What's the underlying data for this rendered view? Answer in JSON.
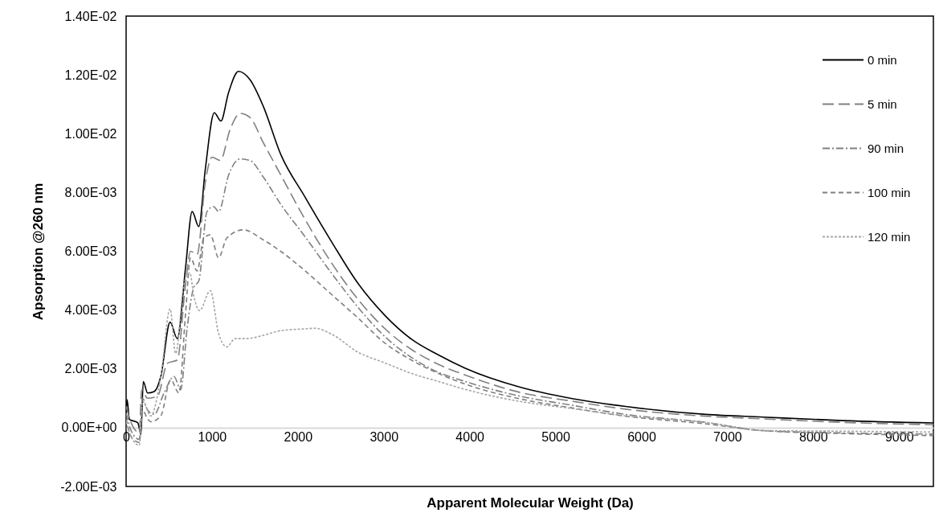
{
  "chart_data": {
    "type": "line",
    "xlabel": "Apparent Molecular Weight (Da)",
    "ylabel": "Apsorption @260 nm",
    "xlim": [
      0,
      9400
    ],
    "xticks": [
      0,
      1000,
      2000,
      3000,
      4000,
      5000,
      6000,
      7000,
      8000,
      9000
    ],
    "ylim": [
      -0.002,
      0.014
    ],
    "yticks": [
      {
        "value": -0.002,
        "label": "-2.00E-03"
      },
      {
        "value": 0,
        "label": "0.00E+00"
      },
      {
        "value": 0.002,
        "label": "2.00E-03"
      },
      {
        "value": 0.004,
        "label": "4.00E-03"
      },
      {
        "value": 0.006,
        "label": "6.00E-03"
      },
      {
        "value": 0.008,
        "label": "8.00E-03"
      },
      {
        "value": 0.01,
        "label": "1.00E-02"
      },
      {
        "value": 0.012,
        "label": "1.20E-02"
      },
      {
        "value": 0.014,
        "label": "1.40E-02"
      }
    ],
    "legend": "top right",
    "marker": "none",
    "series": [
      {
        "name": "0 min",
        "color": "#000000",
        "line_style": "solid",
        "x": [
          0,
          12,
          38,
          135,
          173,
          200,
          250,
          327,
          404,
          512,
          596,
          692,
          769,
          846,
          923,
          1027,
          1104,
          1192,
          1308,
          1442,
          1596,
          1800,
          2082,
          2393,
          2704,
          3016,
          3327,
          3638,
          3949,
          4571,
          5194,
          5816,
          6749,
          7411,
          8346,
          9400
        ],
        "values": [
          0.0005,
          0.00095,
          0.00028,
          0.00017,
          -0.00022,
          0.00157,
          0.00118,
          0.00123,
          0.00174,
          0.00359,
          0.00303,
          0.00544,
          0.00735,
          0.00684,
          0.00881,
          0.01071,
          0.01043,
          0.01139,
          0.01212,
          0.01184,
          0.01094,
          0.0093,
          0.00785,
          0.00632,
          0.00489,
          0.00381,
          0.003,
          0.00247,
          0.00202,
          0.00139,
          0.00099,
          0.00072,
          0.00045,
          0.00036,
          0.00024,
          0.00016
        ]
      },
      {
        "name": "5 min",
        "color": "#808080",
        "line_style": "longdash",
        "x": [
          0,
          58,
          154,
          181,
          250,
          365,
          481,
          596,
          692,
          750,
          827,
          923,
          1000,
          1096,
          1212,
          1327,
          1442,
          1596,
          1800,
          2082,
          2393,
          2704,
          3016,
          3327,
          3638,
          3949,
          4571,
          5194,
          5816,
          6749,
          7411,
          8346,
          9400
        ],
        "values": [
          0.00073,
          0.00017,
          -0.00017,
          0.00129,
          0.001,
          0.00107,
          0.00219,
          0.0023,
          0.00488,
          0.006,
          0.00589,
          0.00836,
          0.0092,
          0.00909,
          0.01015,
          0.01069,
          0.01055,
          0.0097,
          0.0086,
          0.00709,
          0.0056,
          0.00435,
          0.00336,
          0.00265,
          0.00215,
          0.00179,
          0.00121,
          0.0009,
          0.00063,
          0.00039,
          0.0003,
          0.00018,
          0.0001
        ]
      },
      {
        "name": "90 min",
        "color": "#808080",
        "line_style": "dashdot",
        "x": [
          0,
          58,
          154,
          190,
          250,
          327,
          442,
          558,
          635,
          712,
          788,
          846,
          942,
          1019,
          1077,
          1192,
          1327,
          1442,
          1596,
          1800,
          2082,
          2393,
          2704,
          3016,
          3327,
          3638,
          3949,
          4571,
          5194,
          5816,
          6749,
          7411,
          8346,
          9400
        ],
        "values": [
          0.0005,
          -0.0001,
          -0.0004,
          0.001,
          0.0006,
          0.00045,
          0.00118,
          0.00174,
          0.00129,
          0.00342,
          0.00477,
          0.00499,
          0.00735,
          0.00752,
          0.00735,
          0.00858,
          0.00914,
          0.00909,
          0.00853,
          0.0076,
          0.0065,
          0.00525,
          0.00408,
          0.00309,
          0.00238,
          0.00188,
          0.00157,
          0.00108,
          0.00076,
          0.00045,
          0.00018,
          -0.0001,
          -0.00018,
          -0.00022
        ]
      },
      {
        "name": "100 min",
        "color": "#7f7f7f",
        "line_style": "dashed",
        "x": [
          0,
          58,
          154,
          190,
          250,
          288,
          404,
          519,
          615,
          692,
          750,
          827,
          904,
          981,
          1077,
          1173,
          1365,
          1596,
          1800,
          2082,
          2393,
          2704,
          3016,
          3327,
          3638,
          3949,
          4571,
          5194,
          5816,
          6749,
          7411,
          8346,
          9400
        ],
        "values": [
          0.0003,
          -0.0003,
          -0.0005,
          0.0006,
          0.0003,
          0.0002,
          0.0004,
          0.00163,
          0.00118,
          0.00387,
          0.00578,
          0.00533,
          0.00645,
          0.00656,
          0.00578,
          0.00645,
          0.00673,
          0.00639,
          0.006,
          0.00534,
          0.00453,
          0.00372,
          0.00287,
          0.00229,
          0.00184,
          0.00148,
          0.00099,
          0.00067,
          0.00039,
          0.00013,
          -0.0001,
          -0.0002,
          -0.00027
        ]
      },
      {
        "name": "120 min",
        "color": "#a6a6a6",
        "line_style": "dotted",
        "x": [
          0,
          58,
          154,
          190,
          288,
          404,
          512,
          577,
          673,
          742,
          788,
          854,
          981,
          1077,
          1173,
          1269,
          1404,
          1596,
          1800,
          2082,
          2200,
          2393,
          2704,
          3016,
          3327,
          3638,
          3949,
          4571,
          5194,
          5816,
          6749,
          7411,
          8346,
          9400
        ],
        "values": [
          0.0002,
          -0.0003,
          -0.0006,
          0.0009,
          0.0004,
          0.00174,
          0.00404,
          0.00252,
          0.00488,
          0.00527,
          0.00449,
          0.00398,
          0.00466,
          0.0032,
          0.00275,
          0.00303,
          0.00303,
          0.00314,
          0.0033,
          0.00336,
          0.00338,
          0.00318,
          0.00256,
          0.0022,
          0.00184,
          0.00157,
          0.0013,
          0.0009,
          0.00065,
          0.0004,
          0.00018,
          -0.0001,
          -0.00012,
          -0.00015
        ]
      }
    ]
  }
}
